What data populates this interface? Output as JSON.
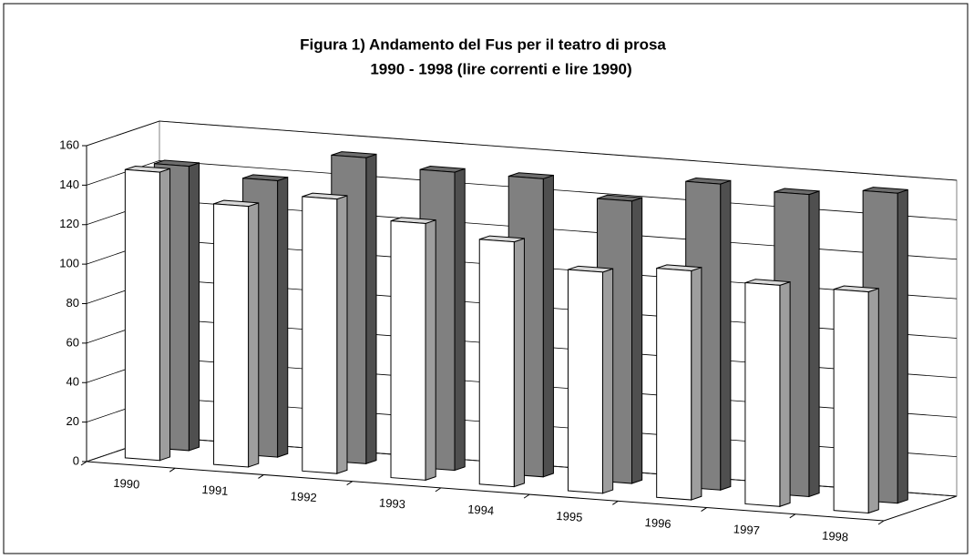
{
  "chart_data": {
    "type": "bar3d",
    "title": "Figura 1) Andamento del Fus per il teatro di prosa",
    "subtitle": "1990 - 1998 (lire correnti e lire 1990)",
    "categories": [
      "1990",
      "1991",
      "1992",
      "1993",
      "1994",
      "1995",
      "1996",
      "1997",
      "1998"
    ],
    "series": [
      {
        "color": "#ffffff",
        "values": [
          146,
          132,
          139,
          130,
          124,
          112,
          116,
          112,
          112
        ]
      },
      {
        "color": "#808080",
        "values": [
          144,
          140,
          155,
          151,
          151,
          143,
          155,
          153,
          157
        ]
      }
    ],
    "ylim": [
      0,
      160
    ],
    "yticks": [
      0,
      20,
      40,
      60,
      80,
      100,
      120,
      140,
      160
    ],
    "grid": true
  }
}
